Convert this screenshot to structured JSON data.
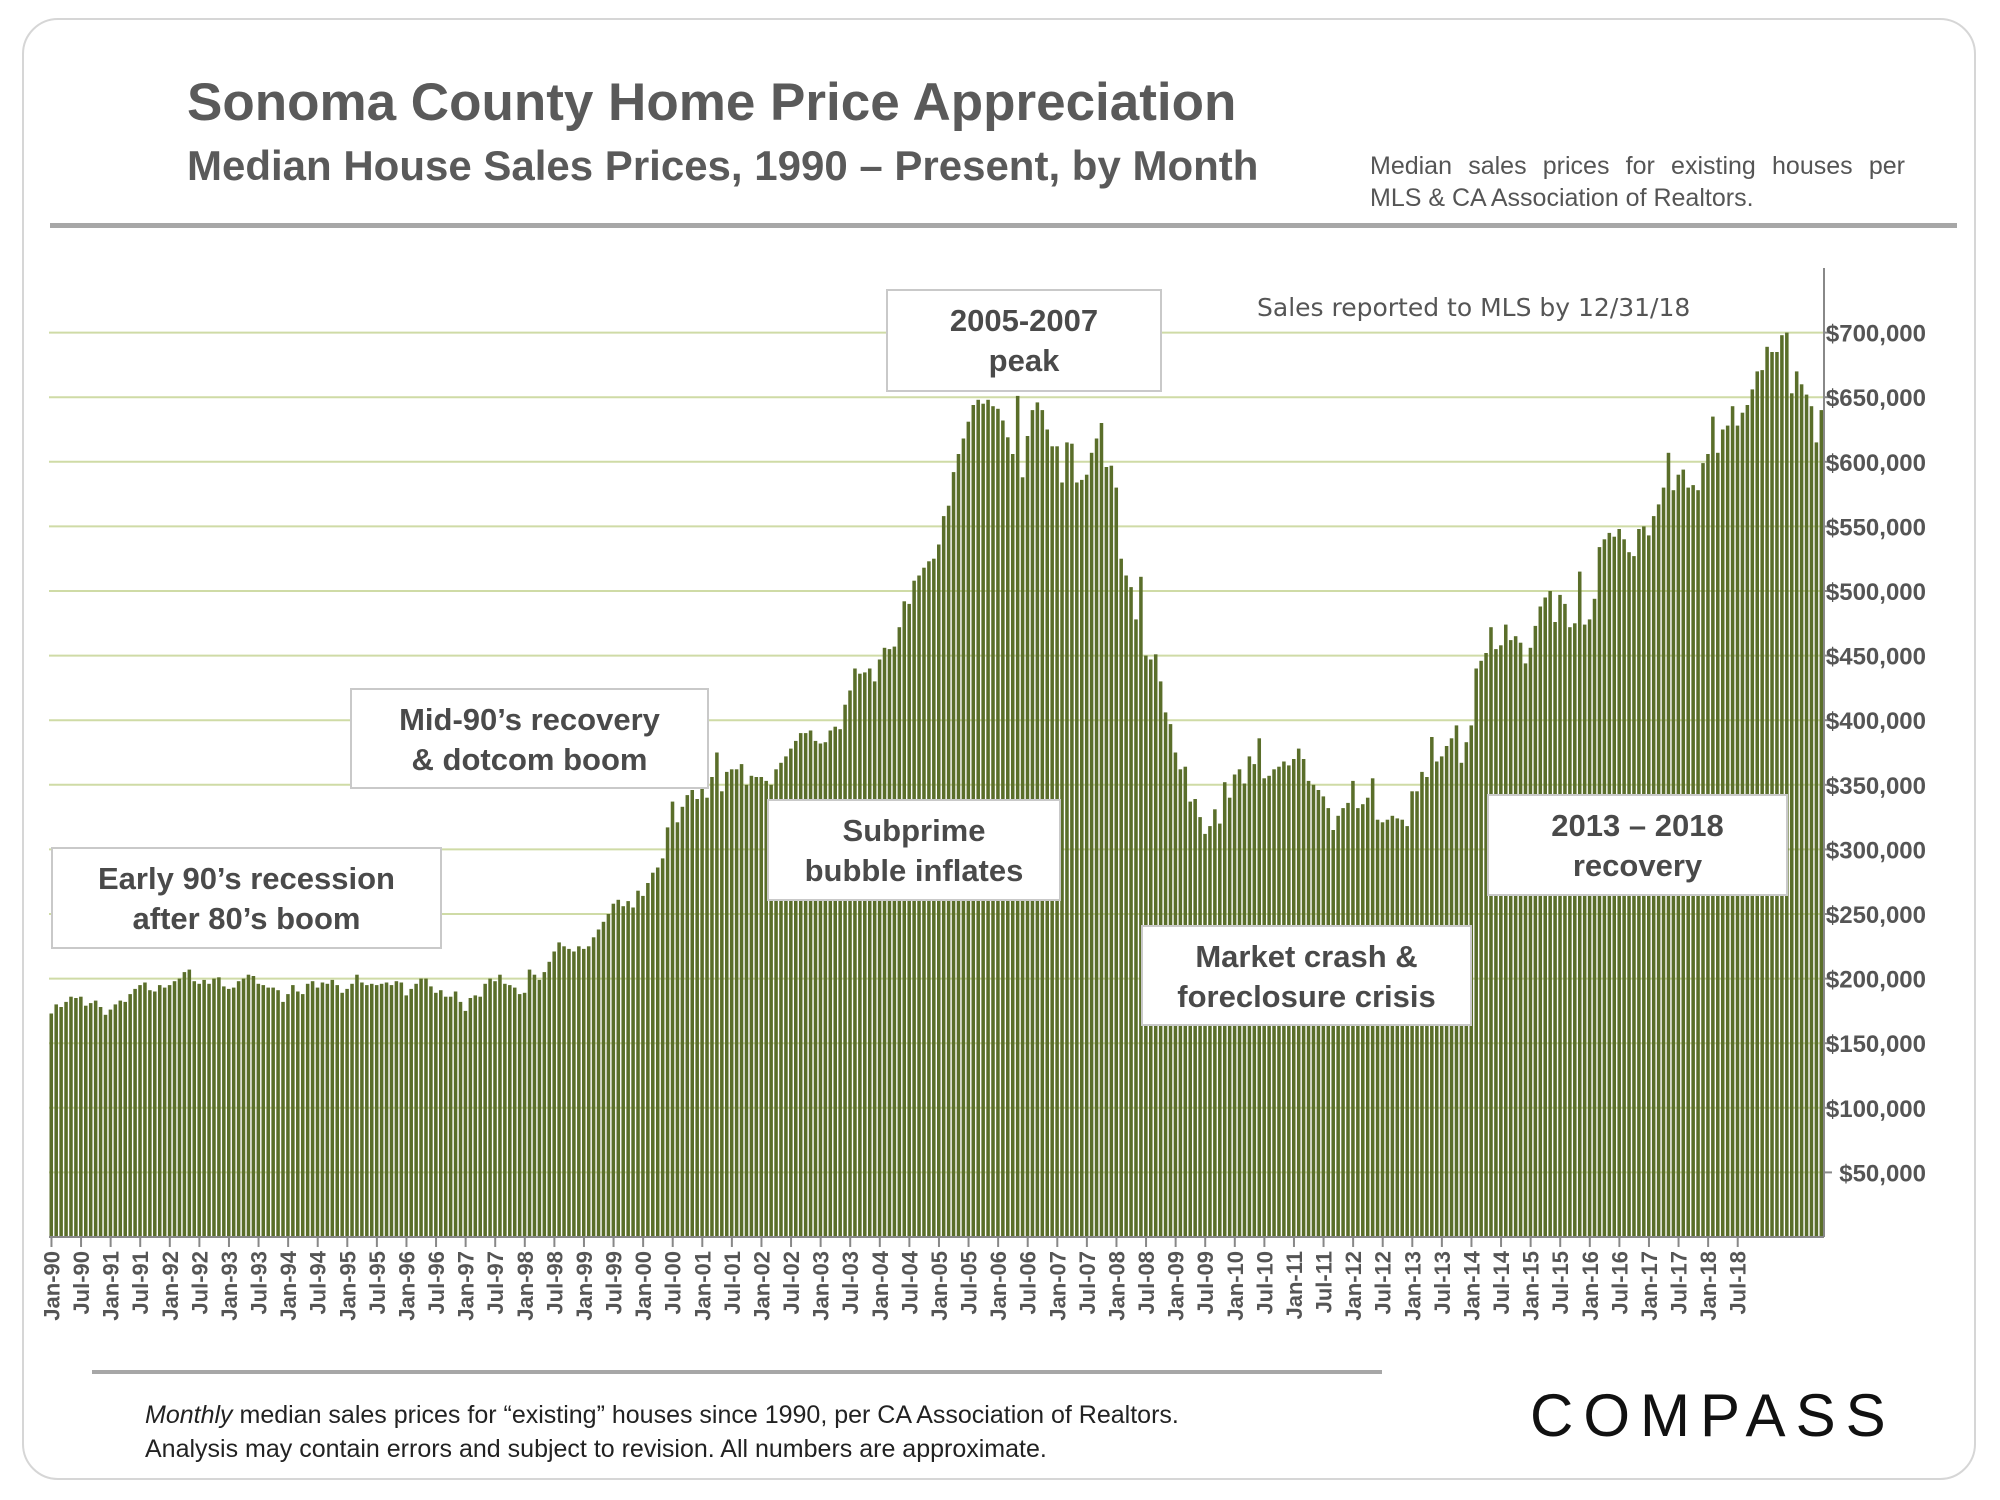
{
  "header": {
    "title": "Sonoma County Home Price Appreciation",
    "subtitle": "Median House Sales Prices, 1990 – Present, by Month",
    "source_note": "Median sales prices for existing houses per MLS & CA Association of Realtors."
  },
  "annotations": {
    "mls_note": "Sales reported to MLS by 12/31/18",
    "callouts": [
      {
        "id": "early90s",
        "text": "Early 90’s recession\nafter 80’s boom"
      },
      {
        "id": "mid90s",
        "text": "Mid-90’s recovery\n& dotcom boom"
      },
      {
        "id": "subprime",
        "text": "Subprime\nbubble inflates"
      },
      {
        "id": "peak",
        "text": "2005-2007\npeak"
      },
      {
        "id": "crash",
        "text": "Market crash &\nforeclosure crisis"
      },
      {
        "id": "recovery",
        "text": "2013 – 2018\nrecovery"
      }
    ]
  },
  "footer": {
    "note_italic": "Monthly",
    "note_rest": " median sales prices for “existing” houses since 1990, per CA Association of Realtors.",
    "note_line2": "Analysis may contain errors and subject to revision. All numbers are approximate.",
    "logo_text": "COMPASS"
  },
  "colors": {
    "bar": "#5a6e2a",
    "gridline": "#cfdba6",
    "axis": "#888888",
    "text": "#555555"
  },
  "chart_data": {
    "type": "bar",
    "title": "Sonoma County Home Price Appreciation",
    "subtitle": "Median House Sales Prices, 1990 – Present, by Month",
    "ylim": [
      0,
      750000
    ],
    "y_ticks": [
      50000,
      100000,
      150000,
      200000,
      250000,
      300000,
      350000,
      400000,
      450000,
      500000,
      550000,
      600000,
      650000,
      700000
    ],
    "y_tick_labels": [
      "$50,000",
      "$100,000",
      "$150,000",
      "$200,000",
      "$250,000",
      "$300,000",
      "$350,000",
      "$400,000",
      "$450,000",
      "$500,000",
      "$550,000",
      "$600,000",
      "$650,000",
      "$700,000"
    ],
    "grid": true,
    "x_tick_labels": [
      "Jan-90",
      "Jul-90",
      "Jan-91",
      "Jul-91",
      "Jan-92",
      "Jul-92",
      "Jan-93",
      "Jul-93",
      "Jan-94",
      "Jul-94",
      "Jan-95",
      "Jul-95",
      "Jan-96",
      "Jul-96",
      "Jan-97",
      "Jul-97",
      "Jan-98",
      "Jul-98",
      "Jan-99",
      "Jul-99",
      "Jan-00",
      "Jul-00",
      "Jan-01",
      "Jul-01",
      "Jan-02",
      "Jul-02",
      "Jan-03",
      "Jul-03",
      "Jan-04",
      "Jul-04",
      "Jan-05",
      "Jul-05",
      "Jan-06",
      "Jul-06",
      "Jan-07",
      "Jul-07",
      "Jan-08",
      "Jul-08",
      "Jan-09",
      "Jul-09",
      "Jan-10",
      "Jul-10",
      "Jan-11",
      "Jul-11",
      "Jan-12",
      "Jul-12",
      "Jan-13",
      "Jul-13",
      "Jan-14",
      "Jul-14",
      "Jan-15",
      "Jul-15",
      "Jan-16",
      "Jul-16",
      "Jan-17",
      "Jul-17",
      "Jan-18",
      "Jul-18"
    ],
    "start_month": "Jan-90",
    "end_month": "Dec-18",
    "values": [
      173000,
      180000,
      178000,
      182000,
      186000,
      185000,
      186000,
      179000,
      181000,
      183000,
      178000,
      172000,
      176000,
      180000,
      183000,
      182000,
      188000,
      192000,
      195000,
      197000,
      191000,
      190000,
      195000,
      193000,
      195000,
      198000,
      200000,
      205000,
      207000,
      198000,
      196000,
      199000,
      196000,
      200000,
      201000,
      194000,
      192000,
      193000,
      198000,
      200000,
      203000,
      202000,
      196000,
      195000,
      193000,
      193000,
      191000,
      182000,
      188000,
      195000,
      190000,
      188000,
      196000,
      198000,
      193000,
      197000,
      196000,
      199000,
      195000,
      189000,
      192000,
      196000,
      203000,
      197000,
      195000,
      196000,
      195000,
      196000,
      197000,
      195000,
      198000,
      197000,
      187000,
      192000,
      196000,
      200000,
      200000,
      194000,
      189000,
      191000,
      186000,
      186000,
      190000,
      182000,
      175000,
      185000,
      187000,
      186000,
      196000,
      200000,
      198000,
      203000,
      196000,
      195000,
      193000,
      188000,
      189000,
      207000,
      203000,
      199000,
      205000,
      213000,
      221000,
      228000,
      225000,
      223000,
      221000,
      225000,
      223000,
      225000,
      232000,
      238000,
      244000,
      250000,
      258000,
      261000,
      256000,
      260000,
      255000,
      268000,
      264000,
      274000,
      282000,
      286000,
      293000,
      317000,
      337000,
      321000,
      333000,
      342000,
      346000,
      339000,
      348000,
      340000,
      356000,
      375000,
      345000,
      360000,
      362000,
      362000,
      366000,
      350000,
      357000,
      356000,
      356000,
      353000,
      350000,
      362000,
      367000,
      372000,
      378000,
      384000,
      390000,
      390000,
      392000,
      384000,
      382000,
      383000,
      392000,
      395000,
      393000,
      412000,
      423000,
      440000,
      436000,
      437000,
      440000,
      430000,
      447000,
      456000,
      455000,
      457000,
      472000,
      492000,
      490000,
      508000,
      512000,
      518000,
      523000,
      525000,
      536000,
      558000,
      566000,
      592000,
      606000,
      618000,
      631000,
      644000,
      648000,
      645000,
      648000,
      643000,
      641000,
      632000,
      619000,
      606000,
      651000,
      588000,
      620000,
      640000,
      646000,
      640000,
      625000,
      612000,
      612000,
      584000,
      615000,
      614000,
      584000,
      586000,
      590000,
      607000,
      618000,
      630000,
      596000,
      597000,
      580000,
      525000,
      512000,
      503000,
      478000,
      511000,
      450000,
      447000,
      451000,
      430000,
      406000,
      397000,
      375000,
      362000,
      364000,
      337000,
      339000,
      325000,
      312000,
      318000,
      331000,
      320000,
      352000,
      340000,
      358000,
      362000,
      351000,
      372000,
      366000,
      386000,
      355000,
      357000,
      362000,
      364000,
      368000,
      365000,
      370000,
      378000,
      370000,
      353000,
      350000,
      346000,
      341000,
      332000,
      315000,
      326000,
      332000,
      336000,
      353000,
      332000,
      335000,
      340000,
      355000,
      323000,
      321000,
      323000,
      326000,
      324000,
      323000,
      318000,
      345000,
      345000,
      360000,
      356000,
      387000,
      368000,
      372000,
      380000,
      386000,
      396000,
      367000,
      383000,
      396000,
      440000,
      446000,
      452000,
      472000,
      455000,
      458000,
      474000,
      462000,
      465000,
      460000,
      444000,
      456000,
      473000,
      488000,
      495000,
      500000,
      476000,
      497000,
      490000,
      472000,
      475000,
      515000,
      474000,
      478000,
      494000,
      534000,
      540000,
      545000,
      542000,
      548000,
      540000,
      530000,
      527000,
      548000,
      550000,
      543000,
      558000,
      567000,
      580000,
      607000,
      578000,
      590000,
      594000,
      580000,
      582000,
      578000,
      599000,
      606000,
      635000,
      607000,
      625000,
      628000,
      643000,
      628000,
      638000,
      644000,
      656000,
      670000,
      671000,
      689000,
      685000,
      685000,
      698000,
      700000,
      653000,
      670000,
      660000,
      652000,
      643000,
      615000,
      640000
    ]
  }
}
